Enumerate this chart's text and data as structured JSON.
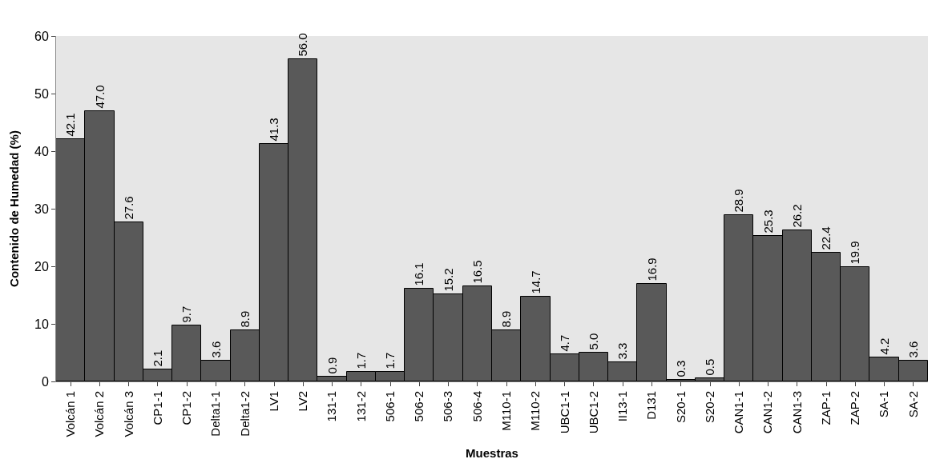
{
  "chart_data": {
    "type": "bar",
    "xlabel": "Muestras",
    "ylabel": "Contenido de Humedad (%)",
    "categories": [
      "Volcán 1",
      "Volcán 2",
      "Volcán 3",
      "CP1-1",
      "CP1-2",
      "Delta1-1",
      "Delta1-2",
      "LV1",
      "LV2",
      "131-1",
      "131-2",
      "506-1",
      "506-2",
      "506-3",
      "506-4",
      "M110-1",
      "M110-2",
      "UBC1-1",
      "UBC1-2",
      "II13-1",
      "D131",
      "S20-1",
      "S20-2",
      "CAN1-1",
      "CAN1-2",
      "CAN1-3",
      "ZAP-1",
      "ZAP-2",
      "SA-1",
      "SA-2"
    ],
    "values": [
      42.1,
      47.0,
      27.6,
      2.1,
      9.7,
      3.6,
      8.9,
      41.3,
      56.0,
      0.9,
      1.7,
      1.7,
      16.1,
      15.2,
      16.5,
      8.9,
      14.7,
      4.7,
      5.0,
      3.3,
      16.9,
      0.3,
      0.5,
      28.9,
      25.3,
      26.2,
      22.4,
      19.9,
      4.2,
      3.6
    ],
    "value_labels": [
      "42.1",
      "47.0",
      "27.6",
      "2.1",
      "9.7",
      "3.6",
      "8.9",
      "41.3",
      "56.0",
      "0.9",
      "1.7",
      "1.7",
      "16.1",
      "15.2",
      "16.5",
      "8.9",
      "14.7",
      "4.7",
      "5.0",
      "3.3",
      "16.9",
      "0.3",
      "0.5",
      "28.9",
      "25.3",
      "26.2",
      "22.4",
      "19.9",
      "4.2",
      "3.6"
    ],
    "color": "#595959",
    "ylim": [
      0,
      60
    ],
    "yticks": [
      0,
      10,
      20,
      30,
      40,
      50,
      60
    ],
    "grid": false,
    "legend": false
  }
}
